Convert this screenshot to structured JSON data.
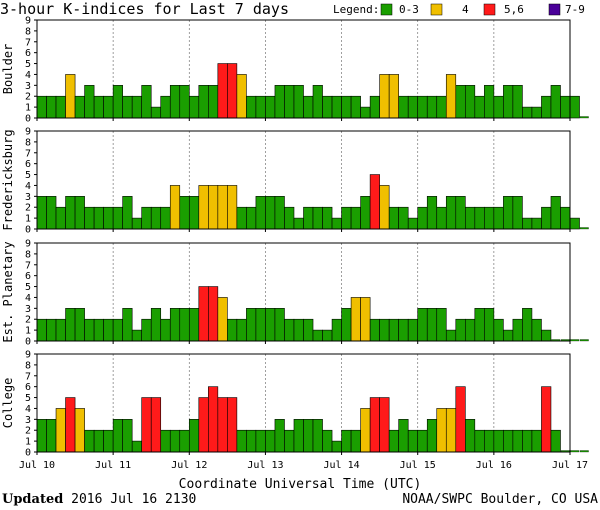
{
  "title": "3-hour K-indices for Last 7 days",
  "legend": {
    "label": "Legend:",
    "items": [
      {
        "label": "0-3",
        "color": "#1a9e00"
      },
      {
        "label": "4",
        "color": "#f0bf00"
      },
      {
        "label": "5,6",
        "color": "#ff1a1a"
      },
      {
        "label": "7-9",
        "color": "#4a0099"
      }
    ]
  },
  "chart_data": {
    "type": "bar",
    "ylim": [
      0,
      9
    ],
    "yticks": [
      "0",
      "1",
      "2",
      "3",
      "4",
      "5",
      "6",
      "7",
      "8",
      "9"
    ],
    "xlabel": "Coordinate Universal Time (UTC)",
    "day_labels": [
      "Jul 10",
      "Jul 11",
      "Jul 12",
      "Jul 13",
      "Jul 14",
      "Jul 15",
      "Jul 16",
      "Jul 17"
    ],
    "series": [
      {
        "name": "Boulder",
        "values": [
          2,
          2,
          2,
          4,
          2,
          3,
          2,
          2,
          3,
          2,
          2,
          3,
          1,
          2,
          3,
          3,
          2,
          3,
          3,
          5,
          5,
          4,
          2,
          2,
          2,
          3,
          3,
          3,
          2,
          3,
          2,
          2,
          2,
          2,
          1,
          2,
          4,
          4,
          2,
          2,
          2,
          2,
          2,
          4,
          3,
          3,
          2,
          3,
          2,
          3,
          3,
          1,
          1,
          2,
          3,
          2,
          2,
          0
        ]
      },
      {
        "name": "Fredericksburg",
        "values": [
          3,
          3,
          2,
          3,
          3,
          2,
          2,
          2,
          2,
          3,
          1,
          2,
          2,
          2,
          4,
          3,
          3,
          4,
          4,
          4,
          4,
          2,
          2,
          3,
          3,
          3,
          2,
          1,
          2,
          2,
          2,
          1,
          2,
          2,
          3,
          5,
          4,
          2,
          2,
          1,
          2,
          3,
          2,
          3,
          3,
          2,
          2,
          2,
          2,
          3,
          3,
          1,
          1,
          2,
          3,
          2,
          1,
          0
        ]
      },
      {
        "name": "Est. Planetary",
        "values": [
          2,
          2,
          2,
          3,
          3,
          2,
          2,
          2,
          2,
          3,
          1,
          2,
          3,
          2,
          3,
          3,
          3,
          5,
          5,
          4,
          2,
          2,
          3,
          3,
          3,
          3,
          2,
          2,
          2,
          1,
          1,
          2,
          3,
          4,
          4,
          2,
          2,
          2,
          2,
          2,
          3,
          3,
          3,
          1,
          2,
          2,
          3,
          3,
          2,
          1,
          2,
          3,
          2,
          1,
          0,
          0,
          0,
          0
        ]
      },
      {
        "name": "College",
        "values": [
          3,
          3,
          4,
          5,
          4,
          2,
          2,
          2,
          3,
          3,
          1,
          5,
          5,
          2,
          2,
          2,
          3,
          5,
          6,
          5,
          5,
          2,
          2,
          2,
          2,
          3,
          2,
          3,
          3,
          3,
          2,
          1,
          2,
          2,
          4,
          5,
          5,
          2,
          3,
          2,
          2,
          3,
          4,
          4,
          6,
          3,
          2,
          2,
          2,
          2,
          2,
          2,
          2,
          6,
          2,
          0,
          0,
          0
        ]
      }
    ]
  },
  "footer": {
    "updated_label": "Updated",
    "updated_value": "2016 Jul 16 2130",
    "source": "NOAA/SWPC Boulder, CO USA"
  }
}
